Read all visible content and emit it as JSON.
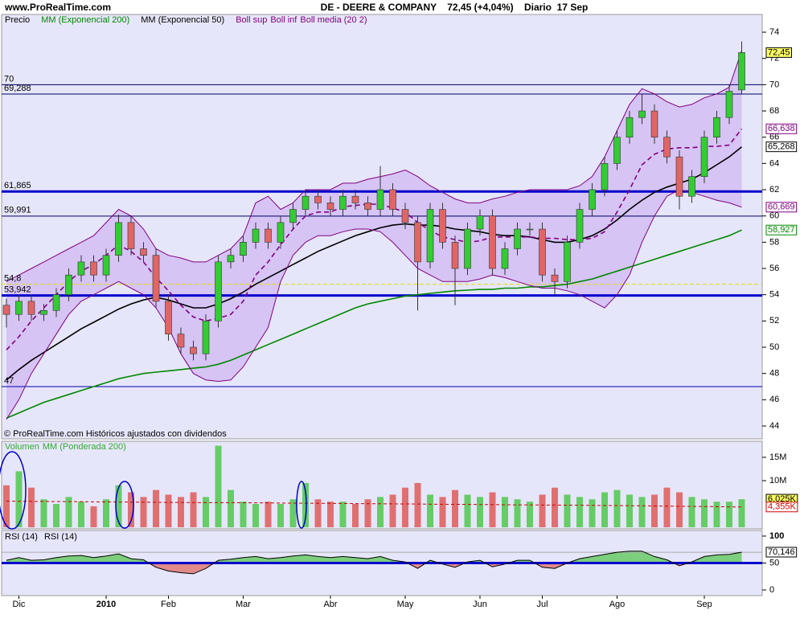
{
  "chart_data": [
    {
      "type": "candlestick",
      "header": "www.ProRealTime.com",
      "title": "DE - DEERE & COMPANY    72,45 (+4,04%)    Diario  17 Sep",
      "note": "© ProRealTime.com Históricos ajustados con dividendos",
      "price_name": "Precio",
      "last_label": "72,45",
      "up_color": "#33cc33",
      "down_color": "#e06666",
      "categories": [
        null,
        "Dic",
        null,
        null,
        null,
        null,
        null,
        null,
        "2010",
        null,
        null,
        null,
        null,
        "Feb",
        null,
        null,
        null,
        null,
        null,
        "Mar",
        null,
        null,
        null,
        null,
        null,
        null,
        "Abr",
        null,
        null,
        null,
        null,
        null,
        "May",
        null,
        null,
        null,
        null,
        null,
        "Jun",
        null,
        null,
        null,
        null,
        "Jul",
        null,
        null,
        null,
        null,
        null,
        "Ago",
        null,
        null,
        null,
        null,
        null,
        null,
        "Sep",
        null,
        null,
        null
      ],
      "open": [
        53.2,
        52.5,
        53.5,
        52.5,
        52.8,
        54,
        55.5,
        56.5,
        55.5,
        57,
        59.5,
        57.5,
        57,
        53.5,
        51,
        50,
        49.5,
        52,
        56.5,
        57,
        58,
        59,
        58,
        59.5,
        60.5,
        61.5,
        61,
        60.5,
        61.5,
        61,
        60.5,
        62,
        60.5,
        59.5,
        56.5,
        60.5,
        58,
        56,
        59,
        60,
        56,
        57.5,
        59,
        59,
        55.5,
        55,
        58,
        60.5,
        62,
        64,
        66,
        67.5,
        68,
        66,
        64.5,
        61.5,
        63,
        66,
        67.5,
        69.6
      ],
      "high": [
        53.7,
        54,
        54,
        53.3,
        54.5,
        56,
        57,
        57,
        57.5,
        60.1,
        60,
        58,
        57.5,
        54,
        51.5,
        50.5,
        52.5,
        57,
        57.5,
        58.5,
        59.5,
        59.5,
        60,
        61,
        62,
        62,
        61.5,
        62,
        62,
        61.5,
        63.8,
        62.5,
        61,
        60,
        61,
        61,
        58.5,
        59.5,
        60.5,
        60.5,
        58,
        59.5,
        59.5,
        59.5,
        56,
        58.5,
        61,
        62.5,
        64.5,
        66.5,
        68,
        69.3,
        68.5,
        66.5,
        65,
        63.5,
        66.5,
        68,
        70,
        73.3
      ],
      "low": [
        51.5,
        52,
        52,
        52,
        52.3,
        53.5,
        55,
        55,
        55,
        56.5,
        57,
        56.5,
        53,
        50.5,
        49.5,
        49,
        49,
        51.5,
        56,
        56.5,
        57.5,
        57.5,
        57.5,
        59,
        60,
        60.5,
        60,
        60,
        60.5,
        60,
        60,
        60,
        59,
        52.8,
        56,
        57.5,
        53.2,
        55.5,
        58.5,
        55.5,
        55.5,
        57,
        58.5,
        55,
        54,
        54.5,
        57.5,
        60,
        61.5,
        63.5,
        65.5,
        67,
        65.5,
        64,
        60.5,
        61,
        62.5,
        65.5,
        67,
        69.3
      ],
      "close": [
        52.5,
        53.5,
        52.5,
        52.8,
        54,
        55.5,
        56.5,
        55.5,
        57,
        59.5,
        57.5,
        57,
        53.5,
        51,
        50,
        49.5,
        52,
        56.5,
        57,
        58,
        59,
        58,
        59.5,
        60.5,
        61.5,
        61,
        60.5,
        61.5,
        61,
        60.5,
        62,
        60.5,
        59.5,
        56.5,
        60.5,
        58,
        56,
        59,
        60,
        56,
        57.5,
        59,
        59,
        55.5,
        55,
        58,
        60.5,
        62,
        64,
        66,
        67.5,
        68,
        66,
        64.5,
        61.5,
        63,
        66,
        67.5,
        69.5,
        72.45
      ],
      "series": [
        {
          "name": "MM (Exponencial 200)",
          "color": "#008800",
          "last_label": "58,927",
          "values": [
            44.6,
            45,
            45.4,
            45.8,
            46.1,
            46.4,
            46.7,
            47,
            47.3,
            47.6,
            47.8,
            48,
            48.1,
            48.2,
            48.3,
            48.4,
            48.5,
            48.7,
            49,
            49.4,
            49.8,
            50.2,
            50.6,
            51,
            51.4,
            51.8,
            52.2,
            52.6,
            53,
            53.3,
            53.5,
            53.7,
            53.9,
            54,
            54.1,
            54.2,
            54.3,
            54.35,
            54.4,
            54.4,
            54.5,
            54.5,
            54.6,
            54.6,
            54.7,
            54.8,
            55,
            55.2,
            55.5,
            55.8,
            56.1,
            56.4,
            56.7,
            57,
            57.3,
            57.6,
            57.9,
            58.2,
            58.5,
            58.927
          ]
        },
        {
          "name": "MM (Exponencial 50)",
          "color": "#000000",
          "last_label": "65,268",
          "values": [
            47.5,
            48.3,
            49,
            49.6,
            50.2,
            50.8,
            51.4,
            51.9,
            52.4,
            52.9,
            53.3,
            53.6,
            53.8,
            53.6,
            53.3,
            53,
            53,
            53.3,
            53.7,
            54.2,
            54.8,
            55.3,
            55.8,
            56.3,
            56.8,
            57.3,
            57.7,
            58.1,
            58.5,
            58.8,
            59.1,
            59.3,
            59.4,
            59.3,
            59.3,
            59.2,
            59,
            58.9,
            58.8,
            58.6,
            58.5,
            58.5,
            58.4,
            58.2,
            58,
            58,
            58.2,
            58.5,
            59,
            59.7,
            60.5,
            61.2,
            61.8,
            62.2,
            62.5,
            62.8,
            63.3,
            63.9,
            64.5,
            65.268
          ]
        },
        {
          "name": "Boll sup",
          "color": "#800080",
          "band": "upper",
          "values": [
            55,
            55.5,
            56,
            56.5,
            57,
            57.5,
            58,
            58.5,
            59.5,
            60.5,
            60,
            59,
            57.5,
            57,
            56.8,
            56.5,
            56.5,
            57,
            57.5,
            58.5,
            61,
            61.5,
            60.5,
            61,
            62,
            62,
            62,
            62.5,
            62.5,
            62.8,
            63,
            63.2,
            63.5,
            63,
            62.3,
            61.8,
            61.3,
            61,
            61,
            61.3,
            61.5,
            61.8,
            62,
            62,
            62,
            62,
            62.3,
            63,
            64.5,
            66.5,
            68.5,
            69.7,
            69.3,
            68.7,
            68.3,
            68.5,
            69,
            69.3,
            69.8,
            72.6
          ]
        },
        {
          "name": "Boll inf",
          "color": "#800080",
          "band": "lower",
          "last_label": "60,669",
          "values": [
            44.5,
            46,
            48,
            49.5,
            51,
            52.5,
            53.5,
            54,
            54.5,
            55,
            54.5,
            54,
            53,
            51.5,
            49.5,
            48,
            47.5,
            47.4,
            47.5,
            48.5,
            50,
            51.5,
            55,
            57,
            58,
            58.5,
            58.5,
            58.8,
            59,
            59,
            58.8,
            58,
            57,
            56,
            55.5,
            55,
            55,
            55,
            55.2,
            55.5,
            55.3,
            55,
            54.7,
            54.5,
            54.5,
            54.3,
            54,
            53.5,
            53,
            54,
            55.5,
            58,
            60,
            61.5,
            62,
            61.8,
            61.5,
            61.2,
            61,
            60.669
          ]
        },
        {
          "name": "Boll media (20 2)",
          "color": "#800080",
          "dashed": true,
          "last_label": "66,638",
          "values": [
            49.8,
            50.8,
            52,
            53,
            54,
            55,
            55.8,
            56.3,
            57,
            57.8,
            57.3,
            56.5,
            55.3,
            54.3,
            53.2,
            52.3,
            52,
            52.2,
            52.5,
            53.5,
            55.5,
            56.5,
            57.8,
            59,
            60,
            60.3,
            60.3,
            60.7,
            60.8,
            60.9,
            60.9,
            60.6,
            60.3,
            59.5,
            58.9,
            58.4,
            58.2,
            58,
            58.1,
            58.4,
            58.4,
            58.4,
            58.4,
            58.3,
            58.3,
            58.2,
            58.2,
            58.3,
            58.8,
            60.3,
            62,
            63.9,
            64.7,
            65.1,
            65.2,
            65.2,
            65.3,
            65.3,
            65.4,
            66.638
          ]
        }
      ],
      "band_fill": "#d6c4f4",
      "levels": [
        {
          "value": 70,
          "label": "70",
          "color": "#000066",
          "style": "thin"
        },
        {
          "value": 69.288,
          "label": "69,288",
          "color": "#000066",
          "style": "thin"
        },
        {
          "value": 61.865,
          "label": "61,865",
          "color": "#0000cc",
          "style": "thick"
        },
        {
          "value": 59.991,
          "label": "59,991",
          "color": "#000066",
          "style": "thin"
        },
        {
          "value": 54.8,
          "label": "54,8",
          "color": "#e0e000",
          "style": "dashed"
        },
        {
          "value": 53.942,
          "label": "53,942",
          "color": "#0000cc",
          "style": "thick"
        },
        {
          "value": 47,
          "label": "47",
          "color": "#0000aa",
          "style": "thin"
        }
      ],
      "ylim": [
        43.02,
        75.35
      ],
      "yticks": [
        44,
        46,
        48,
        50,
        52,
        54,
        56,
        58,
        60,
        62,
        64,
        66,
        68,
        70,
        72,
        74
      ]
    },
    {
      "type": "bar",
      "up_color": "#66cc66",
      "down_color": "#e07070",
      "series": [
        {
          "name": "Volumen",
          "color": "#33aa33",
          "last_label": "6,025K",
          "values": [
            9,
            12,
            8.5,
            6,
            5,
            6.5,
            5.5,
            4.5,
            6,
            9,
            7.5,
            6.5,
            8,
            7,
            6.5,
            7.5,
            6.5,
            17.5,
            8,
            5.5,
            5,
            5.5,
            5,
            6,
            9.5,
            6,
            5.5,
            5.5,
            5,
            6,
            6.5,
            7,
            8.5,
            9.5,
            7,
            6.5,
            8,
            7,
            6.5,
            7.5,
            6.5,
            6,
            5.5,
            7,
            8.5,
            7,
            6.5,
            6,
            7.5,
            8,
            7,
            6.5,
            7,
            8.5,
            7.5,
            6.5,
            6,
            5.5,
            5.5,
            6.025
          ]
        },
        {
          "name": "MM (Ponderada 200)",
          "color": "#cc0000",
          "dashed": true,
          "last_label": "4,355K",
          "values": [
            5.6,
            5.58,
            5.56,
            5.54,
            5.52,
            5.5,
            5.48,
            5.46,
            5.44,
            5.42,
            5.4,
            5.38,
            5.36,
            5.34,
            5.32,
            5.3,
            5.28,
            5.3,
            5.28,
            5.26,
            5.24,
            5.22,
            5.2,
            5.18,
            5.16,
            5.14,
            5.12,
            5.1,
            5.08,
            5.06,
            5.04,
            5.02,
            5,
            4.98,
            4.96,
            4.94,
            4.92,
            4.9,
            4.88,
            4.86,
            4.84,
            4.82,
            4.8,
            4.78,
            4.76,
            4.74,
            4.72,
            4.7,
            4.68,
            4.66,
            4.63,
            4.6,
            4.57,
            4.54,
            4.51,
            4.48,
            4.45,
            4.42,
            4.39,
            4.355
          ]
        }
      ],
      "ylim": [
        -0.34,
        18.45
      ],
      "yticks": [
        {
          "value": 15,
          "label": "15M"
        },
        {
          "value": 10,
          "label": "10M"
        }
      ]
    },
    {
      "type": "line",
      "title": "RSI (14)",
      "series": [
        {
          "name": "RSI (14)",
          "color": "#000000",
          "last_label": "70,146",
          "values": [
            55,
            60,
            55,
            56,
            60,
            63,
            64,
            60,
            63,
            67,
            58,
            56,
            42,
            35,
            32,
            30,
            40,
            55,
            57,
            60,
            62,
            58,
            60,
            63,
            65,
            62,
            60,
            62,
            60,
            58,
            62,
            55,
            52,
            40,
            55,
            48,
            42,
            52,
            55,
            43,
            48,
            55,
            55,
            42,
            40,
            50,
            58,
            62,
            66,
            70,
            72,
            72,
            62,
            56,
            45,
            52,
            62,
            65,
            66,
            70.146
          ]
        }
      ],
      "above_color": "#7ccf7c",
      "below_color": "#e08a8a",
      "levels": [
        {
          "value": 70,
          "color": "#aaaaaa",
          "style": "thin"
        },
        {
          "value": 50,
          "color": "#0000cc",
          "style": "thick"
        }
      ],
      "ylim": [
        -8.96,
        110.4
      ],
      "yticks": [
        0,
        50,
        100
      ]
    }
  ]
}
